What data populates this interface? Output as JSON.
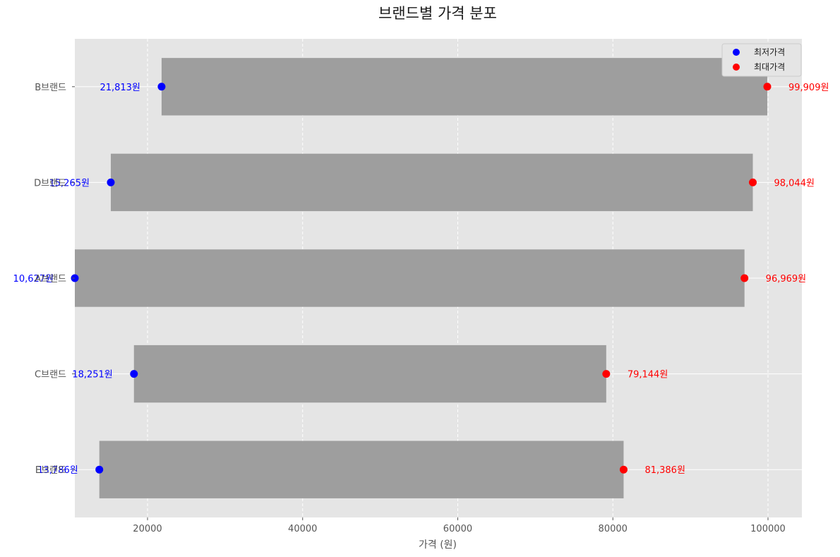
{
  "chart_data": {
    "type": "bar",
    "orientation": "horizontal",
    "title": "브랜드별 가격 분포",
    "xlabel": "가격 (원)",
    "ylabel": "",
    "xlim": [
      10627,
      104370
    ],
    "xticks": [
      20000,
      40000,
      60000,
      80000,
      100000
    ],
    "grid": true,
    "legend_position": "top-right",
    "categories": [
      "B브랜드",
      "D브랜드",
      "A브랜드",
      "C브랜드",
      "E브랜드"
    ],
    "series": [
      {
        "name": "최저가격",
        "values": [
          21813,
          15265,
          10627,
          18251,
          13786
        ],
        "labels": [
          "21,813원",
          "15,265원",
          "10,627원",
          "18,251원",
          "13,786원"
        ],
        "color": "#0000ff"
      },
      {
        "name": "최대가격",
        "values": [
          99909,
          98044,
          96969,
          79144,
          81386
        ],
        "labels": [
          "99,909원",
          "98,044원",
          "96,969원",
          "79,144원",
          "81,386원"
        ],
        "color": "#ff0000"
      }
    ],
    "bar_color": "#9e9e9e",
    "plot_background": "#e5e5e5"
  }
}
